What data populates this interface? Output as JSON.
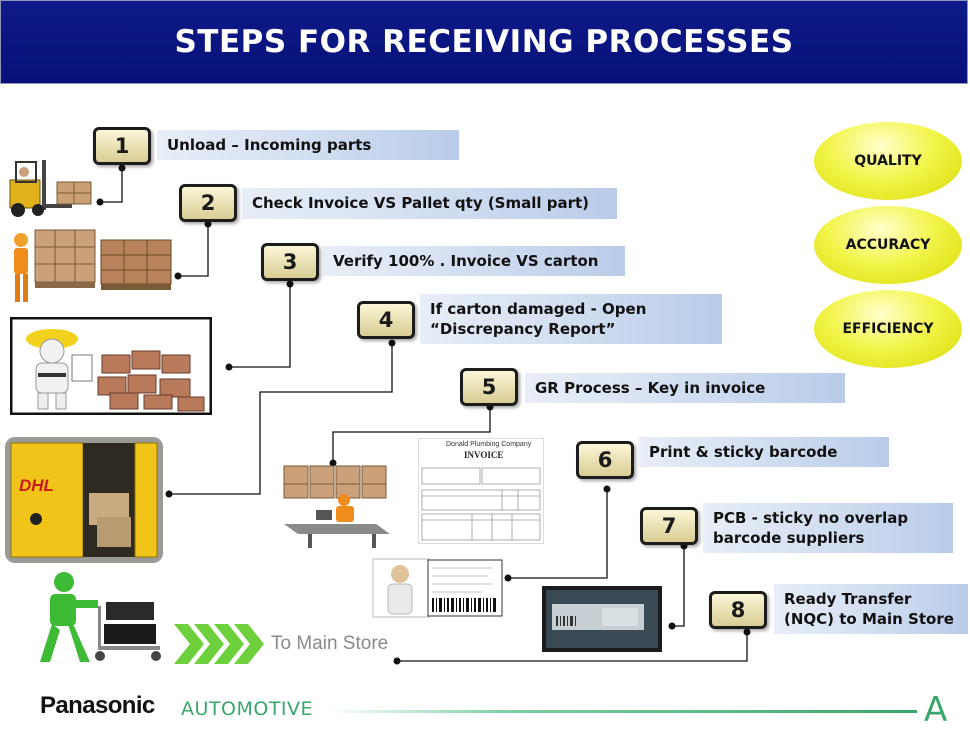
{
  "title": "STEPS FOR RECEIVING PROCESSES",
  "steps": [
    {
      "num": "1",
      "label": "Unload – Incoming parts"
    },
    {
      "num": "2",
      "label": "Check Invoice  VS Pallet  qty (Small part)"
    },
    {
      "num": "3",
      "label": "Verify 100% . Invoice VS carton"
    },
    {
      "num": "4",
      "label": "If carton damaged - Open\n“Discrepancy Report”"
    },
    {
      "num": "5",
      "label": "GR Process – Key in invoice"
    },
    {
      "num": "6",
      "label": "Print & sticky barcode"
    },
    {
      "num": "7",
      "label": "PCB - sticky no overlap\nbarcode suppliers"
    },
    {
      "num": "8",
      "label": "Ready Transfer\n(NQC) to Main Store"
    }
  ],
  "goals": [
    "QUALITY",
    "ACCURACY",
    "EFFICIENCY"
  ],
  "to_main_store": "To Main Store",
  "invoice": {
    "company": "Donald Plumbing Company",
    "title": "INVOICE"
  },
  "footer": {
    "brand": "Panasonic",
    "division": "AUTOMOTIVE",
    "mark": "A"
  },
  "colors": {
    "title_bg": "#061178",
    "oval": "#f2f54b",
    "accent_green": "#3aa66b"
  }
}
